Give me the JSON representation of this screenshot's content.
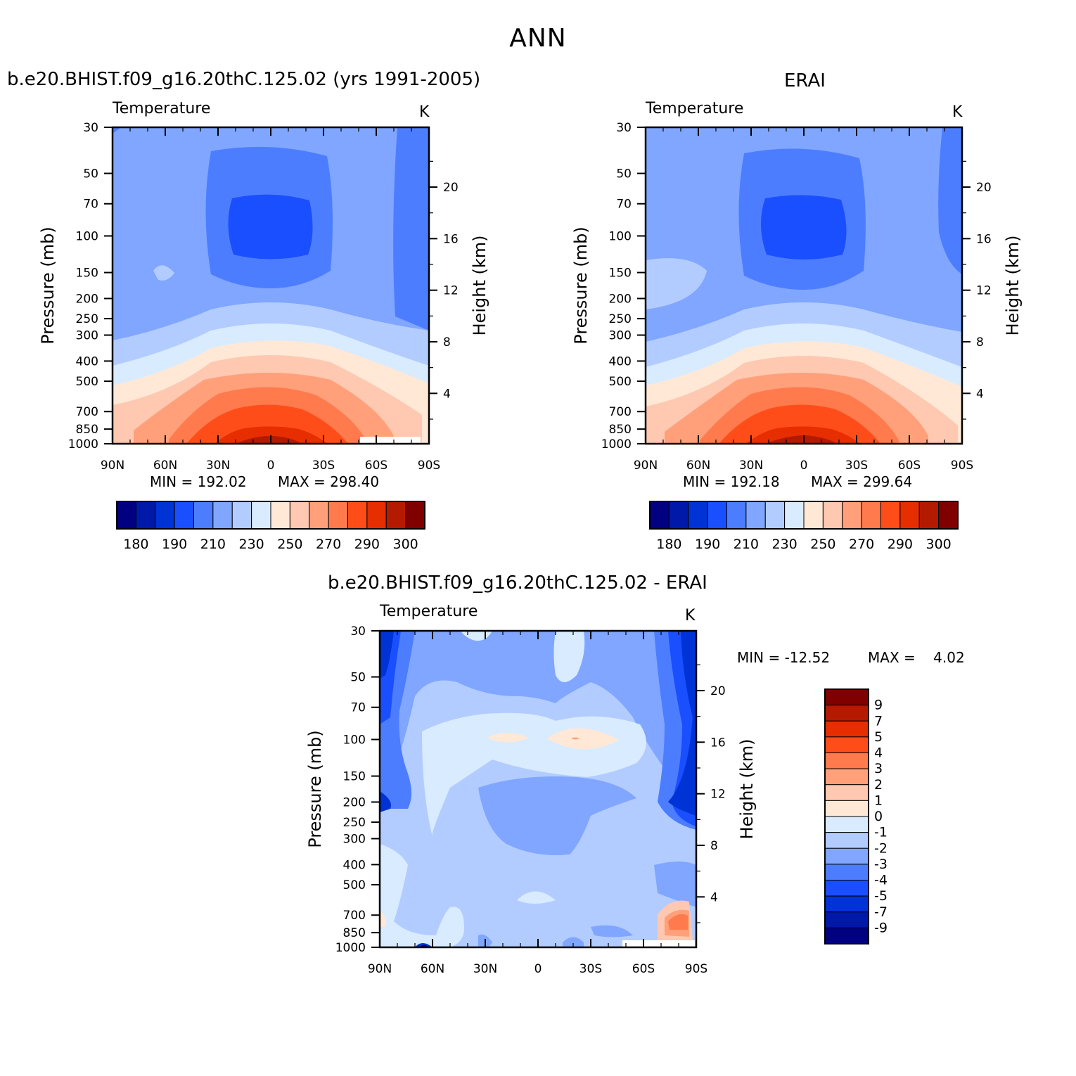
{
  "page_title": "ANN",
  "colors": {
    "abs": [
      "#000080",
      "#0019a8",
      "#0033d6",
      "#1a4fff",
      "#4d7dff",
      "#80a6ff",
      "#b3ccff",
      "#d9ebff",
      "#ffe8d6",
      "#ffc8b0",
      "#ffa07a",
      "#ff7a4d",
      "#ff4d1a",
      "#e62e00",
      "#b31a00",
      "#800000"
    ],
    "diff": [
      "#000080",
      "#0019a8",
      "#0033d6",
      "#1a4fff",
      "#4d7dff",
      "#80a6ff",
      "#b3ccff",
      "#d9ebff",
      "#ffe8d6",
      "#ffc8b0",
      "#ffa07a",
      "#ff7a4d",
      "#ff4d1a",
      "#e62e00",
      "#b31a00",
      "#800000"
    ]
  },
  "chart_data": [
    {
      "type": "heatmap",
      "id": "model",
      "title": "b.e20.BHIST.f09_g16.20thC.125.02 (yrs 1991-2005)",
      "subtitle": "Temperature",
      "units": "K",
      "ylabel": "Pressure (mb)",
      "y2label": "Height (km)",
      "x_ticks": [
        "90N",
        "60N",
        "30N",
        "0",
        "30S",
        "60S",
        "90S"
      ],
      "y_ticks": [
        "30",
        "50",
        "70",
        "100",
        "150",
        "200",
        "250",
        "300",
        "400",
        "500",
        "700",
        "850",
        "1000"
      ],
      "y2_ticks": [
        "20",
        "16",
        "12",
        "8",
        "4"
      ],
      "min_label": "MIN = 192.02",
      "max_label": "MAX = 298.40",
      "colorbar_labels": [
        "180",
        "190",
        "210",
        "230",
        "250",
        "270",
        "290",
        "300"
      ]
    },
    {
      "type": "heatmap",
      "id": "obs",
      "title": "ERAI",
      "subtitle": "Temperature",
      "units": "K",
      "ylabel": "Pressure (mb)",
      "y2label": "Height (km)",
      "x_ticks": [
        "90N",
        "60N",
        "30N",
        "0",
        "30S",
        "60S",
        "90S"
      ],
      "y_ticks": [
        "30",
        "50",
        "70",
        "100",
        "150",
        "200",
        "250",
        "300",
        "400",
        "500",
        "700",
        "850",
        "1000"
      ],
      "y2_ticks": [
        "20",
        "16",
        "12",
        "8",
        "4"
      ],
      "min_label": "MIN = 192.18",
      "max_label": "MAX = 299.64",
      "colorbar_labels": [
        "180",
        "190",
        "210",
        "230",
        "250",
        "270",
        "290",
        "300"
      ]
    },
    {
      "type": "heatmap",
      "id": "diff",
      "title": "b.e20.BHIST.f09_g16.20thC.125.02 - ERAI",
      "subtitle": "Temperature",
      "units": "K",
      "ylabel": "Pressure (mb)",
      "y2label": "Height (km)",
      "x_ticks": [
        "90N",
        "60N",
        "30N",
        "0",
        "30S",
        "60S",
        "90S"
      ],
      "y_ticks": [
        "30",
        "50",
        "70",
        "100",
        "150",
        "200",
        "250",
        "300",
        "400",
        "500",
        "700",
        "850",
        "1000"
      ],
      "y2_ticks": [
        "20",
        "16",
        "12",
        "8",
        "4"
      ],
      "min_label": "MIN = -12.52",
      "max_label": "MAX =    4.02",
      "colorbar_labels": [
        "9",
        "7",
        "5",
        "4",
        "3",
        "2",
        "1",
        "0",
        "-1",
        "-2",
        "-3",
        "-4",
        "-5",
        "-7",
        "-9"
      ]
    }
  ]
}
